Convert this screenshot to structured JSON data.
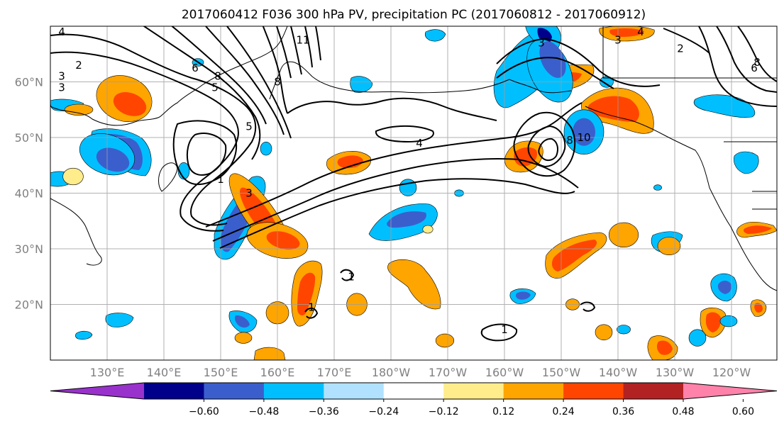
{
  "title": "2017060412 F036 300 hPa PV, precipitation PC (2017060812 - 2017060912)",
  "chart_data": {
    "type": "heatmap",
    "title": "2017060412 F036 300 hPa PV, precipitation PC (2017060812 - 2017060912)",
    "map": {
      "projection": "cylindrical",
      "lon_range": [
        120,
        248
      ],
      "lat_range": [
        10,
        70
      ],
      "grid": true
    },
    "lat_ticks": [
      {
        "value": 20,
        "label": "20°N"
      },
      {
        "value": 30,
        "label": "30°N"
      },
      {
        "value": 40,
        "label": "40°N"
      },
      {
        "value": 50,
        "label": "50°N"
      },
      {
        "value": 60,
        "label": "60°N"
      }
    ],
    "lon_ticks": [
      {
        "value": 130,
        "label": "130°E"
      },
      {
        "value": 140,
        "label": "140°E"
      },
      {
        "value": 150,
        "label": "150°E"
      },
      {
        "value": 160,
        "label": "160°E"
      },
      {
        "value": 170,
        "label": "170°E"
      },
      {
        "value": 180,
        "label": "180°W"
      },
      {
        "value": 190,
        "label": "170°W"
      },
      {
        "value": 200,
        "label": "160°W"
      },
      {
        "value": 210,
        "label": "150°W"
      },
      {
        "value": 220,
        "label": "140°W"
      },
      {
        "value": 230,
        "label": "130°W"
      },
      {
        "value": 240,
        "label": "120°W"
      }
    ],
    "colorbar": {
      "ticks": [
        "−0.60",
        "−0.48",
        "−0.36",
        "−0.24",
        "−0.12",
        "0.12",
        "0.24",
        "0.36",
        "0.48",
        "0.60"
      ],
      "colors": [
        "#9932cc",
        "#00008b",
        "#3a5fcd",
        "#00bfff",
        "#b0e2ff",
        "#ffffff",
        "#ffec8b",
        "#ffa500",
        "#ff4500",
        "#b22222",
        "#ff82ab"
      ]
    },
    "pv_contour_labels": [
      {
        "text": "4",
        "lon": 122,
        "lat": 69
      },
      {
        "text": "2",
        "lon": 125,
        "lat": 63
      },
      {
        "text": "3",
        "lon": 122,
        "lat": 61
      },
      {
        "text": "3",
        "lon": 122,
        "lat": 59
      },
      {
        "text": "6",
        "lon": 145.5,
        "lat": 62.5
      },
      {
        "text": "8",
        "lon": 149.5,
        "lat": 61
      },
      {
        "text": "5",
        "lon": 149,
        "lat": 59
      },
      {
        "text": "11",
        "lon": 164.5,
        "lat": 67.5
      },
      {
        "text": "8",
        "lon": 160,
        "lat": 60
      },
      {
        "text": "5",
        "lon": 155,
        "lat": 52
      },
      {
        "text": "1",
        "lon": 150,
        "lat": 42.5
      },
      {
        "text": "3",
        "lon": 155,
        "lat": 40
      },
      {
        "text": "4",
        "lon": 185,
        "lat": 49
      },
      {
        "text": "3",
        "lon": 206.5,
        "lat": 67
      },
      {
        "text": "8",
        "lon": 211.5,
        "lat": 49.5
      },
      {
        "text": "10",
        "lon": 214,
        "lat": 50
      },
      {
        "text": "3",
        "lon": 220,
        "lat": 67.5
      },
      {
        "text": "4",
        "lon": 224,
        "lat": 69
      },
      {
        "text": "2",
        "lon": 231,
        "lat": 66
      },
      {
        "text": "6",
        "lon": 244,
        "lat": 62.5
      },
      {
        "text": "8",
        "lon": 244.5,
        "lat": 63.5
      },
      {
        "text": "1",
        "lon": 166,
        "lat": 19.5
      },
      {
        "text": "1",
        "lon": 200,
        "lat": 15.5
      },
      {
        "text": "1",
        "lon": 173,
        "lat": 25
      }
    ],
    "precip_pc_regions": [
      {
        "level": 0.36,
        "lon": 157,
        "lat": 36,
        "rx": 2.6,
        "ry": 9,
        "rot": -35
      },
      {
        "level": 0.48,
        "lon": 157,
        "lat": 36,
        "rx": 1.6,
        "ry": 6,
        "rot": -35
      },
      {
        "level": 0.36,
        "lon": 133,
        "lat": 57,
        "rx": 5,
        "ry": 4,
        "rot": 20
      },
      {
        "level": 0.48,
        "lon": 134,
        "lat": 56,
        "rx": 3,
        "ry": 2,
        "rot": 20
      },
      {
        "level": 0.36,
        "lon": 125,
        "lat": 55,
        "rx": 2.5,
        "ry": 1,
        "rot": 0
      },
      {
        "level": 0.24,
        "lon": 124,
        "lat": 43,
        "rx": 1.8,
        "ry": 1.5,
        "rot": 0
      },
      {
        "level": 0.36,
        "lon": 160,
        "lat": 31.5,
        "rx": 5.5,
        "ry": 3,
        "rot": 15
      },
      {
        "level": 0.48,
        "lon": 161,
        "lat": 31.5,
        "rx": 3,
        "ry": 1.5,
        "rot": 15
      },
      {
        "level": 0.24,
        "lon": 186.5,
        "lat": 33.5,
        "rx": 0.9,
        "ry": 0.7,
        "rot": 0
      },
      {
        "level": 0.36,
        "lon": 174,
        "lat": 20,
        "rx": 1.8,
        "ry": 2,
        "rot": 0
      },
      {
        "level": 0.36,
        "lon": 160,
        "lat": 18.5,
        "rx": 2,
        "ry": 2,
        "rot": 0
      },
      {
        "level": 0.36,
        "lon": 221,
        "lat": 32.5,
        "rx": 2.6,
        "ry": 2.2,
        "rot": 0
      },
      {
        "level": 0.36,
        "lon": 229,
        "lat": 30.5,
        "rx": 2,
        "ry": 1.6,
        "rot": 0
      },
      {
        "level": 0.36,
        "lon": 212,
        "lat": 20,
        "rx": 1.2,
        "ry": 1,
        "rot": 0
      },
      {
        "level": 0.36,
        "lon": 189.5,
        "lat": 13.5,
        "rx": 1.6,
        "ry": 1.2,
        "rot": 0
      },
      {
        "level": 0.36,
        "lon": 154,
        "lat": 14,
        "rx": 1.5,
        "ry": 1,
        "rot": 0
      },
      {
        "level": 0.36,
        "lon": 217.5,
        "lat": 15,
        "rx": 1.5,
        "ry": 1.4,
        "rot": 0
      },
      {
        "level": -0.36,
        "lon": 130,
        "lat": 47,
        "rx": 5,
        "ry": 3.5,
        "rot": 20
      },
      {
        "level": -0.48,
        "lon": 131,
        "lat": 46,
        "rx": 3,
        "ry": 2,
        "rot": 20
      },
      {
        "level": -0.36,
        "lon": 208,
        "lat": 62,
        "rx": 3.5,
        "ry": 6,
        "rot": -25
      },
      {
        "level": -0.48,
        "lon": 208.5,
        "lat": 64,
        "rx": 2,
        "ry": 3.5,
        "rot": -25
      },
      {
        "level": -0.36,
        "lon": 214,
        "lat": 51,
        "rx": 3.5,
        "ry": 4,
        "rot": 0
      },
      {
        "level": -0.48,
        "lon": 214,
        "lat": 51,
        "rx": 2,
        "ry": 2.5,
        "rot": 0
      },
      {
        "level": -0.36,
        "lon": 192,
        "lat": 40,
        "rx": 0.8,
        "ry": 0.6,
        "rot": 0
      },
      {
        "level": -0.36,
        "lon": 221,
        "lat": 15.5,
        "rx": 1.2,
        "ry": 0.8,
        "rot": 0
      },
      {
        "level": -0.36,
        "lon": 146,
        "lat": 63.5,
        "rx": 1,
        "ry": 0.7,
        "rot": 0
      },
      {
        "level": -0.36,
        "lon": 143.5,
        "lat": 44,
        "rx": 1,
        "ry": 1.5,
        "rot": 0
      },
      {
        "level": -0.36,
        "lon": 218,
        "lat": 60,
        "rx": 1.2,
        "ry": 1,
        "rot": 0
      },
      {
        "level": -0.36,
        "lon": 227,
        "lat": 41,
        "rx": 0.7,
        "ry": 0.5,
        "rot": 0
      },
      {
        "level": -0.36,
        "lon": 158,
        "lat": 48,
        "rx": 1,
        "ry": 1.2,
        "rot": 0
      },
      {
        "level": -0.36,
        "lon": 183,
        "lat": 41,
        "rx": 1.5,
        "ry": 1.5,
        "rot": 0
      },
      {
        "level": -0.36,
        "lon": 234,
        "lat": 14,
        "rx": 1.5,
        "ry": 1.5,
        "rot": 0
      },
      {
        "level": -0.36,
        "lon": 239.5,
        "lat": 17,
        "rx": 1.5,
        "ry": 1,
        "rot": 0
      }
    ]
  }
}
